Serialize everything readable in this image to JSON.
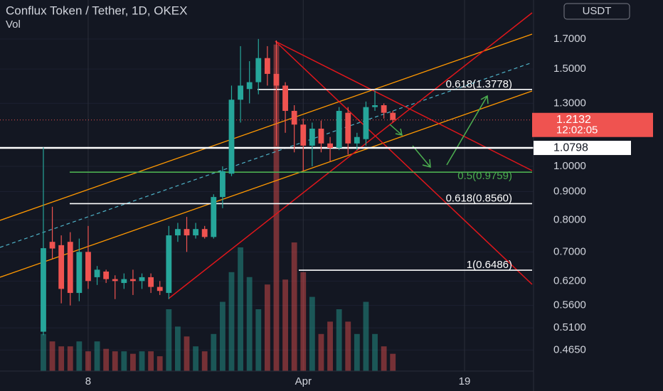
{
  "chart_data": {
    "type": "candlestick",
    "title": "Conflux Token / Tether, 1D, OKEX",
    "volume_label": "Vol",
    "currency": "USDT",
    "log_scale": true,
    "categories": [
      null,
      null,
      null,
      null,
      null,
      "8",
      null,
      null,
      null,
      null,
      null,
      null,
      null,
      null,
      null,
      null,
      null,
      null,
      null,
      null,
      null,
      null,
      null,
      null,
      null,
      null,
      null,
      null,
      null,
      "Apr",
      null,
      null,
      null,
      null,
      null,
      null,
      null,
      null,
      null,
      null
    ],
    "series": {
      "open": [
        0.502,
        0.73,
        0.72,
        0.73,
        0.59,
        0.7,
        0.63,
        0.645,
        0.625,
        0.615,
        0.625,
        0.62,
        0.63,
        0.605,
        0.59,
        0.75,
        0.77,
        0.75,
        0.77,
        0.745,
        0.88,
        0.97,
        1.32,
        1.38,
        1.42,
        1.57,
        1.47,
        1.4,
        1.26,
        1.19,
        1.09,
        1.17,
        1.1,
        1.08,
        1.25,
        1.1,
        1.12,
        1.28,
        1.29,
        1.25
      ],
      "high": [
        1.082,
        0.845,
        0.75,
        0.76,
        0.74,
        0.78,
        0.66,
        0.65,
        0.635,
        0.64,
        0.65,
        0.64,
        0.64,
        0.62,
        0.78,
        0.79,
        0.81,
        0.79,
        0.78,
        0.89,
        1.0,
        1.4,
        1.65,
        1.55,
        1.7,
        1.65,
        1.69,
        1.42,
        1.29,
        1.22,
        1.2,
        1.21,
        1.13,
        1.28,
        1.28,
        1.15,
        1.31,
        1.37,
        1.3,
        1.26
      ],
      "low": [
        0.495,
        0.68,
        0.565,
        0.56,
        0.57,
        0.6,
        0.61,
        0.615,
        0.575,
        0.6,
        0.585,
        0.6,
        0.59,
        0.585,
        0.575,
        0.73,
        0.7,
        0.74,
        0.74,
        0.74,
        0.84,
        0.96,
        1.2,
        1.3,
        1.35,
        1.4,
        1.09,
        1.15,
        1.06,
        0.98,
        1.0,
        1.06,
        1.02,
        1.07,
        1.05,
        1.07,
        1.09,
        1.26,
        1.22,
        1.2
      ],
      "close": [
        0.711,
        0.71,
        0.6,
        0.59,
        0.7,
        0.62,
        0.65,
        0.625,
        0.62,
        0.625,
        0.62,
        0.63,
        0.605,
        0.595,
        0.75,
        0.77,
        0.75,
        0.77,
        0.745,
        0.88,
        0.98,
        1.32,
        1.4,
        1.42,
        1.57,
        1.47,
        1.4,
        1.26,
        1.19,
        1.09,
        1.17,
        1.1,
        1.08,
        1.26,
        1.1,
        1.13,
        1.28,
        1.29,
        1.25,
        1.2132
      ],
      "volume": [
        15,
        12,
        10,
        10,
        12,
        8,
        12,
        9,
        8,
        8,
        7,
        8,
        8,
        6,
        25,
        18,
        14,
        10,
        8,
        15,
        28,
        40,
        50,
        38,
        25,
        35,
        132,
        37,
        52,
        40,
        30,
        15,
        20,
        25,
        20,
        15,
        28,
        15,
        10,
        7
      ]
    },
    "up_color": "#26a69a",
    "down_color": "#ef5350",
    "vlim": [
      0,
      150
    ],
    "xlim": [
      -4.84,
      54.7
    ],
    "xticks": [
      {
        "value": 5,
        "label": "8"
      },
      {
        "value": 29,
        "label": "Apr"
      },
      {
        "value": 47,
        "label": "19"
      }
    ],
    "ylim": [
      0.426,
      2.0
    ],
    "yticks": [
      {
        "value": 1.7,
        "label": "1.7000"
      },
      {
        "value": 1.5,
        "label": "1.5000"
      },
      {
        "value": 1.3,
        "label": "1.3000"
      },
      {
        "value": 1.0,
        "label": "1.0000"
      },
      {
        "value": 0.9,
        "label": "0.9000"
      },
      {
        "value": 0.8,
        "label": "0.8000"
      },
      {
        "value": 0.7,
        "label": "0.7000"
      },
      {
        "value": 0.62,
        "label": "0.6200"
      },
      {
        "value": 0.56,
        "label": "0.5600"
      },
      {
        "value": 0.51,
        "label": "0.5100"
      },
      {
        "value": 0.465,
        "label": "0.4650"
      }
    ],
    "last_price": {
      "value": 1.2132,
      "label": "1.2132",
      "countdown": "12:02:05"
    },
    "level_price": {
      "value": 1.0798,
      "label": "1.0798"
    },
    "fib_levels": [
      {
        "value": 1.3778,
        "label": "0.618(1.3778)",
        "color": "#ffffff"
      },
      {
        "value": 0.9759,
        "label": "0.5(0.9759)",
        "color": "#4caf50"
      },
      {
        "value": 0.856,
        "label": "0.618(0.8560)",
        "color": "#ffffff"
      },
      {
        "value": 0.6486,
        "label": "1(0.6486)",
        "color": "#ffffff"
      }
    ]
  }
}
